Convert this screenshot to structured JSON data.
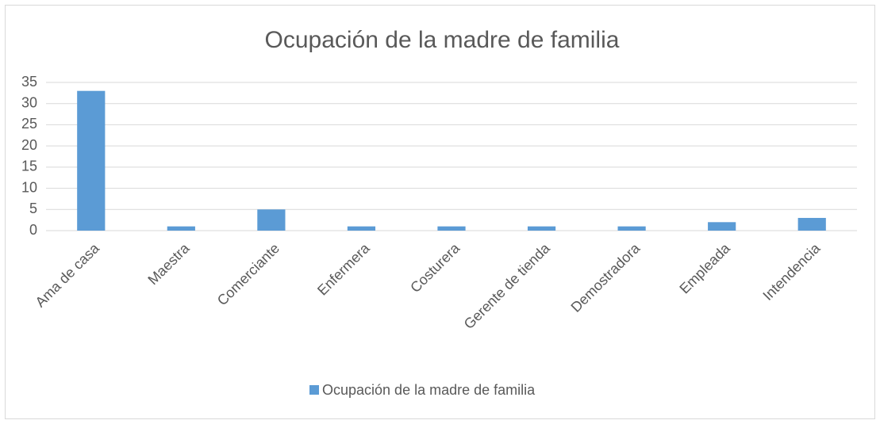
{
  "chart_data": {
    "type": "bar",
    "title": "Ocupación de la madre de familia",
    "categories": [
      "Ama de casa",
      "Maestra",
      "Comerciante",
      "Enfermera",
      "Costurera",
      "Gerente de tienda",
      "Demostradora",
      "Empleada",
      "Intendencia"
    ],
    "series": [
      {
        "name": "Ocupación de la madre de familia",
        "color": "#5b9bd5",
        "values": [
          33,
          1,
          5,
          1,
          1,
          1,
          1,
          2,
          3
        ]
      }
    ],
    "ylim": [
      0,
      35
    ],
    "yticks": [
      0,
      5,
      10,
      15,
      20,
      25,
      30,
      35
    ],
    "grid": true,
    "legend": "bottom"
  }
}
